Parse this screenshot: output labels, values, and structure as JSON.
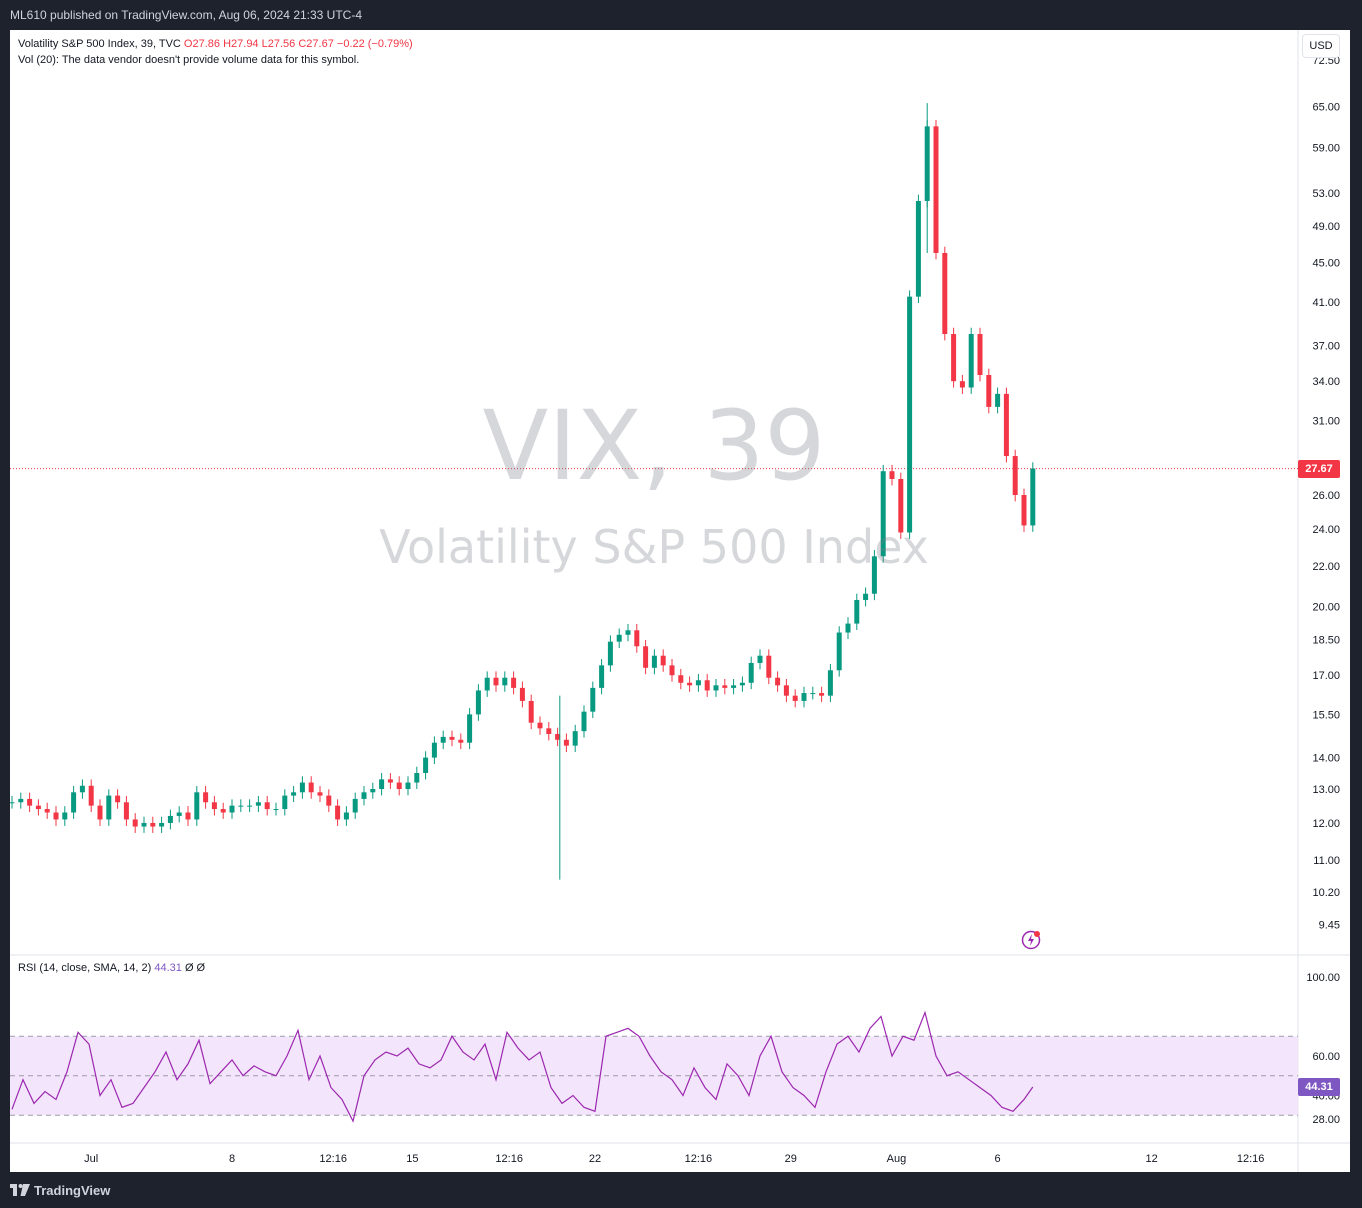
{
  "header": {
    "published_line": "ML610 published on TradingView.com, Aug 06, 2024 21:33 UTC-4"
  },
  "legend": {
    "symbol_line": "Volatility S&P 500 Index, 39, TVC",
    "open": "O27.86",
    "high": "H27.94",
    "low": "L27.56",
    "close": "C27.67",
    "change": "−0.22 (−0.79%)",
    "volume_note": "Vol (20): The data vendor doesn't provide volume data for this symbol."
  },
  "currency": "USD",
  "watermark": {
    "symbol": "VIX, 39",
    "name": "Volatility S&P 500 Index"
  },
  "rsi_legend": {
    "label": "RSI (14, close, SMA, 14, 2)",
    "value": "44.31",
    "extra": "Ø Ø"
  },
  "price_tag": {
    "value": "27.67",
    "color": "#f23645"
  },
  "rsi_tag": {
    "value": "44.31",
    "color": "#7e57c2"
  },
  "footer": {
    "brand": "TradingView"
  },
  "colors": {
    "up": "#089981",
    "down": "#f23645",
    "rsi_line": "#9c27b0",
    "rsi_band": "#f3e5fb"
  },
  "chart_data": [
    {
      "type": "candlestick",
      "title": "Volatility S&P 500 Index, 39, TVC",
      "y_scale": "log",
      "y_ticks": [
        "72.50",
        "65.00",
        "59.00",
        "53.00",
        "49.00",
        "45.00",
        "41.00",
        "37.00",
        "34.00",
        "31.00",
        "26.00",
        "24.00",
        "22.00",
        "20.00",
        "18.50",
        "17.00",
        "15.50",
        "14.00",
        "13.00",
        "12.00",
        "11.00",
        "10.20",
        "9.45"
      ],
      "x_ticks": [
        "Jul",
        "8",
        "12:16",
        "15",
        "12:16",
        "22",
        "12:16",
        "29",
        "Aug",
        "6",
        "12",
        "12:16"
      ],
      "last_price": 27.67,
      "series": [
        {
          "name": "VIX",
          "values": [
            [
              0,
              12.6
            ],
            [
              0.4,
              12.7
            ],
            [
              0.8,
              12.5
            ],
            [
              1.2,
              12.4
            ],
            [
              1.6,
              12.3
            ],
            [
              2.0,
              12.1
            ],
            [
              2.4,
              12.3
            ],
            [
              2.8,
              12.9
            ],
            [
              3.2,
              13.1
            ],
            [
              3.6,
              12.5
            ],
            [
              4.0,
              12.1
            ],
            [
              4.4,
              12.8
            ],
            [
              4.8,
              12.6
            ],
            [
              5.2,
              12.1
            ],
            [
              5.6,
              11.9
            ],
            [
              6.0,
              12.0
            ],
            [
              6.4,
              11.9
            ],
            [
              6.8,
              12.0
            ],
            [
              7.2,
              12.2
            ],
            [
              7.6,
              12.3
            ],
            [
              8.0,
              12.1
            ],
            [
              8.4,
              12.9
            ],
            [
              8.8,
              12.6
            ],
            [
              9.2,
              12.4
            ],
            [
              9.6,
              12.3
            ],
            [
              10.0,
              12.5
            ],
            [
              10.4,
              12.5
            ],
            [
              10.8,
              12.5
            ],
            [
              11.2,
              12.6
            ],
            [
              11.6,
              12.4
            ],
            [
              12.0,
              12.4
            ],
            [
              12.4,
              12.8
            ],
            [
              12.8,
              12.9
            ],
            [
              13.2,
              13.2
            ],
            [
              13.6,
              12.9
            ],
            [
              14.0,
              12.8
            ],
            [
              14.4,
              12.5
            ],
            [
              14.8,
              12.1
            ],
            [
              15.2,
              12.3
            ],
            [
              15.6,
              12.7
            ],
            [
              16.0,
              12.9
            ],
            [
              16.4,
              13.0
            ],
            [
              16.8,
              13.3
            ],
            [
              17.2,
              13.2
            ],
            [
              17.6,
              13.0
            ],
            [
              18.0,
              13.2
            ],
            [
              18.4,
              13.5
            ],
            [
              18.8,
              14.0
            ],
            [
              19.2,
              14.5
            ],
            [
              19.6,
              14.7
            ],
            [
              20.0,
              14.6
            ],
            [
              20.4,
              14.5
            ],
            [
              20.8,
              15.5
            ],
            [
              21.2,
              16.4
            ],
            [
              21.6,
              16.9
            ],
            [
              22.0,
              16.6
            ],
            [
              22.4,
              16.9
            ],
            [
              22.8,
              16.5
            ],
            [
              23.2,
              16.0
            ],
            [
              23.6,
              15.2
            ],
            [
              24.0,
              15.0
            ],
            [
              24.4,
              14.8
            ],
            [
              24.8,
              14.6
            ],
            [
              25.2,
              14.4
            ],
            [
              25.6,
              14.9
            ],
            [
              26.0,
              15.6
            ],
            [
              26.4,
              16.5
            ],
            [
              26.8,
              17.4
            ],
            [
              27.2,
              18.4
            ],
            [
              27.6,
              18.7
            ],
            [
              28.0,
              18.9
            ],
            [
              28.4,
              18.2
            ],
            [
              28.8,
              17.3
            ],
            [
              29.2,
              17.8
            ],
            [
              29.6,
              17.4
            ],
            [
              30.0,
              17.0
            ],
            [
              30.4,
              16.7
            ],
            [
              30.8,
              16.6
            ],
            [
              31.2,
              16.8
            ],
            [
              31.6,
              16.4
            ],
            [
              32.0,
              16.6
            ],
            [
              32.4,
              16.5
            ],
            [
              32.8,
              16.6
            ],
            [
              33.2,
              16.7
            ],
            [
              33.6,
              17.5
            ],
            [
              34.0,
              17.8
            ],
            [
              34.4,
              16.9
            ],
            [
              34.8,
              16.6
            ],
            [
              35.2,
              16.2
            ],
            [
              35.6,
              16.0
            ],
            [
              36.0,
              16.3
            ],
            [
              36.4,
              16.3
            ],
            [
              36.8,
              16.2
            ],
            [
              37.2,
              17.2
            ],
            [
              37.6,
              18.8
            ],
            [
              38.0,
              19.2
            ],
            [
              38.4,
              20.3
            ],
            [
              38.8,
              20.6
            ],
            [
              39.2,
              22.5
            ],
            [
              39.6,
              27.5
            ],
            [
              40.0,
              27.0
            ],
            [
              40.4,
              23.8
            ],
            [
              40.8,
              41.5
            ],
            [
              41.2,
              52.0
            ],
            [
              41.6,
              62.0
            ],
            [
              42.0,
              46.0
            ],
            [
              42.4,
              38.0
            ],
            [
              42.8,
              34.0
            ],
            [
              43.2,
              33.5
            ],
            [
              43.6,
              38.0
            ],
            [
              44.0,
              34.5
            ],
            [
              44.4,
              32.0
            ],
            [
              44.8,
              33.0
            ],
            [
              45.2,
              28.5
            ],
            [
              45.6,
              26.0
            ],
            [
              46.0,
              24.2
            ],
            [
              46.4,
              27.67
            ]
          ]
        }
      ]
    },
    {
      "type": "line",
      "title": "RSI (14, close, SMA, 14, 2)",
      "y_ticks": [
        "100.00",
        "60.00",
        "40.00",
        "28.00"
      ],
      "bands": {
        "upper": 70,
        "middle": 50,
        "lower": 30
      },
      "last_value": 44.31,
      "series": [
        {
          "name": "RSI",
          "values": [
            [
              0,
              33
            ],
            [
              0.5,
              48
            ],
            [
              1.0,
              36
            ],
            [
              1.5,
              42
            ],
            [
              2.0,
              38
            ],
            [
              2.5,
              52
            ],
            [
              3.0,
              72
            ],
            [
              3.5,
              66
            ],
            [
              4.0,
              40
            ],
            [
              4.5,
              48
            ],
            [
              5.0,
              34
            ],
            [
              5.5,
              36
            ],
            [
              6.0,
              44
            ],
            [
              6.5,
              52
            ],
            [
              7.0,
              62
            ],
            [
              7.5,
              48
            ],
            [
              8.0,
              56
            ],
            [
              8.5,
              68
            ],
            [
              9.0,
              46
            ],
            [
              9.5,
              52
            ],
            [
              10.0,
              58
            ],
            [
              10.5,
              50
            ],
            [
              11.0,
              55
            ],
            [
              11.5,
              52
            ],
            [
              12.0,
              50
            ],
            [
              12.5,
              60
            ],
            [
              13.0,
              73
            ],
            [
              13.5,
              48
            ],
            [
              14.0,
              60
            ],
            [
              14.5,
              44
            ],
            [
              15.0,
              38
            ],
            [
              15.5,
              27
            ],
            [
              16.0,
              50
            ],
            [
              16.5,
              58
            ],
            [
              17.0,
              62
            ],
            [
              17.5,
              60
            ],
            [
              18.0,
              64
            ],
            [
              18.5,
              56
            ],
            [
              19.0,
              54
            ],
            [
              19.5,
              58
            ],
            [
              20.0,
              70
            ],
            [
              20.5,
              62
            ],
            [
              21.0,
              58
            ],
            [
              21.5,
              66
            ],
            [
              22.0,
              48
            ],
            [
              22.5,
              72
            ],
            [
              23.0,
              64
            ],
            [
              23.5,
              58
            ],
            [
              24.0,
              62
            ],
            [
              24.5,
              44
            ],
            [
              25.0,
              36
            ],
            [
              25.5,
              40
            ],
            [
              26.0,
              34
            ],
            [
              26.5,
              32
            ],
            [
              27.0,
              70
            ],
            [
              27.5,
              72
            ],
            [
              28.0,
              74
            ],
            [
              28.5,
              70
            ],
            [
              29.0,
              60
            ],
            [
              29.5,
              52
            ],
            [
              30.0,
              48
            ],
            [
              30.5,
              40
            ],
            [
              31.0,
              54
            ],
            [
              31.5,
              44
            ],
            [
              32.0,
              38
            ],
            [
              32.5,
              56
            ],
            [
              33.0,
              50
            ],
            [
              33.5,
              40
            ],
            [
              34.0,
              60
            ],
            [
              34.5,
              70
            ],
            [
              35.0,
              52
            ],
            [
              35.5,
              44
            ],
            [
              36.0,
              40
            ],
            [
              36.5,
              34
            ],
            [
              37.0,
              52
            ],
            [
              37.5,
              66
            ],
            [
              38.0,
              70
            ],
            [
              38.5,
              62
            ],
            [
              39.0,
              74
            ],
            [
              39.5,
              80
            ],
            [
              40.0,
              60
            ],
            [
              40.5,
              70
            ],
            [
              41.0,
              68
            ],
            [
              41.5,
              82
            ],
            [
              42.0,
              60
            ],
            [
              42.5,
              50
            ],
            [
              43.0,
              52
            ],
            [
              43.5,
              48
            ],
            [
              44.0,
              44
            ],
            [
              44.5,
              40
            ],
            [
              45.0,
              34
            ],
            [
              45.5,
              32
            ],
            [
              46.0,
              38
            ],
            [
              46.4,
              44.31
            ]
          ]
        }
      ]
    }
  ]
}
